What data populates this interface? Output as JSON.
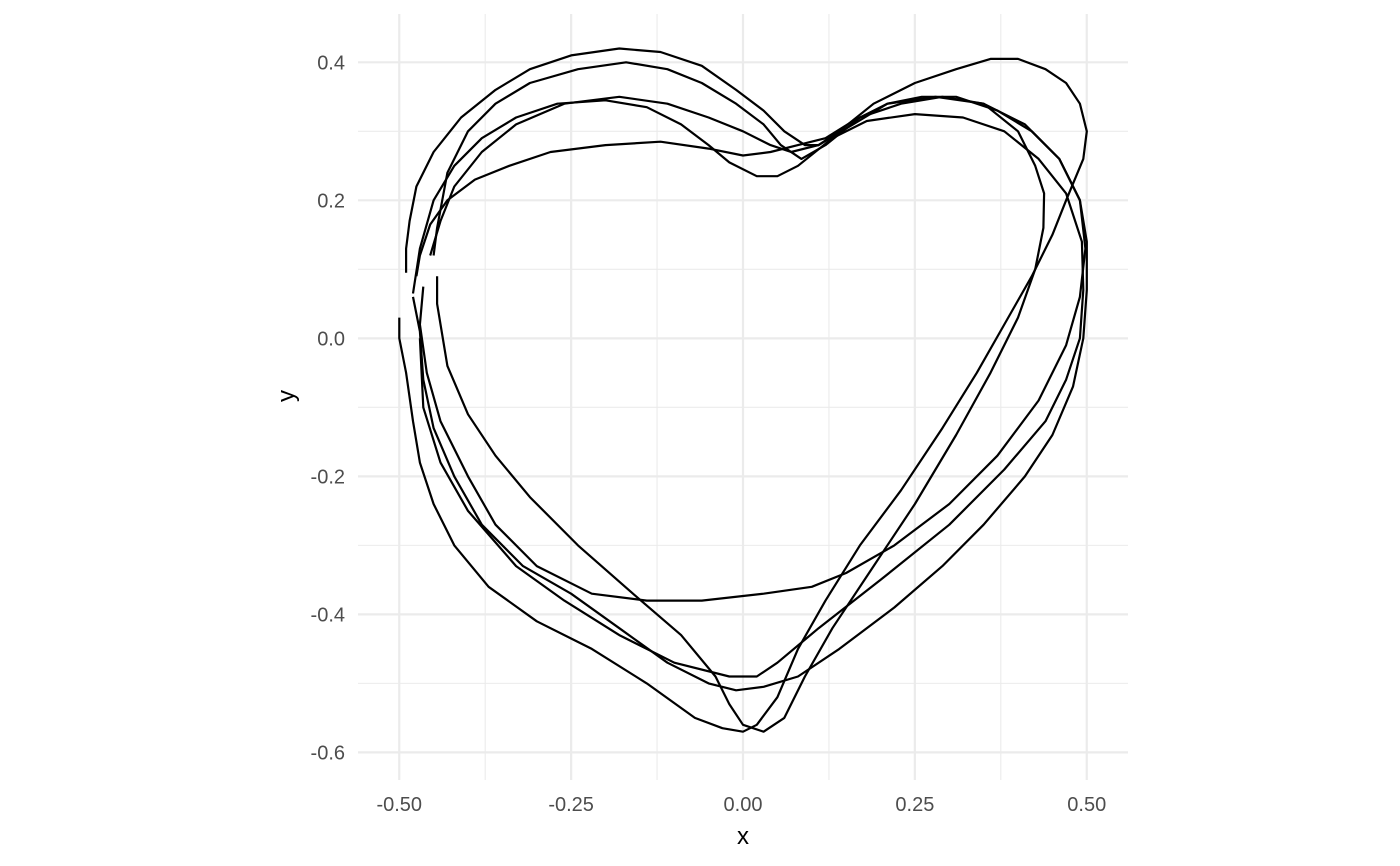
{
  "chart_data": {
    "type": "line",
    "title": "",
    "xlabel": "x",
    "ylabel": "y",
    "xlim": [
      -0.56,
      0.56
    ],
    "ylim": [
      -0.64,
      0.47
    ],
    "x_ticks": [
      -0.5,
      -0.25,
      0,
      0.25,
      0.5
    ],
    "x_tick_labels": [
      "-0.50",
      "-0.25",
      "0.00",
      "0.25",
      "0.50"
    ],
    "y_ticks": [
      -0.6,
      -0.4,
      -0.2,
      0,
      0.2,
      0.4
    ],
    "y_tick_labels": [
      "-0.6",
      "-0.4",
      "-0.2",
      "0.0",
      "0.2",
      "0.4"
    ],
    "grid": true,
    "theme": "minimal",
    "line_color": "#000000",
    "grid_color": "#ebebeb",
    "series": [
      {
        "points": [
          [
            -0.47,
            0.0
          ],
          [
            -0.465,
            -0.1
          ],
          [
            -0.44,
            -0.18
          ],
          [
            -0.4,
            -0.25
          ],
          [
            -0.33,
            -0.33
          ],
          [
            -0.26,
            -0.38
          ],
          [
            -0.18,
            -0.43
          ],
          [
            -0.1,
            -0.47
          ],
          [
            -0.02,
            -0.49
          ],
          [
            0.02,
            -0.49
          ],
          [
            0.05,
            -0.47
          ],
          [
            0.11,
            -0.42
          ],
          [
            0.2,
            -0.35
          ],
          [
            0.3,
            -0.27
          ],
          [
            0.38,
            -0.19
          ],
          [
            0.44,
            -0.12
          ],
          [
            0.47,
            -0.06
          ],
          [
            0.49,
            0.0
          ],
          [
            0.495,
            0.07
          ],
          [
            0.493,
            0.14
          ],
          [
            0.47,
            0.21
          ],
          [
            0.43,
            0.26
          ],
          [
            0.38,
            0.3
          ],
          [
            0.32,
            0.32
          ],
          [
            0.25,
            0.325
          ],
          [
            0.18,
            0.315
          ],
          [
            0.13,
            0.29
          ],
          [
            0.08,
            0.25
          ],
          [
            0.05,
            0.235
          ],
          [
            0.02,
            0.235
          ],
          [
            -0.02,
            0.255
          ],
          [
            -0.05,
            0.28
          ],
          [
            -0.09,
            0.31
          ],
          [
            -0.14,
            0.335
          ],
          [
            -0.2,
            0.345
          ],
          [
            -0.27,
            0.34
          ],
          [
            -0.33,
            0.32
          ],
          [
            -0.38,
            0.29
          ],
          [
            -0.42,
            0.25
          ],
          [
            -0.45,
            0.2
          ],
          [
            -0.47,
            0.13
          ],
          [
            -0.48,
            0.065
          ]
        ]
      },
      {
        "points": [
          [
            -0.445,
            0.09
          ],
          [
            -0.445,
            0.05
          ],
          [
            -0.43,
            -0.04
          ],
          [
            -0.4,
            -0.11
          ],
          [
            -0.36,
            -0.17
          ],
          [
            -0.31,
            -0.23
          ],
          [
            -0.24,
            -0.3
          ],
          [
            -0.16,
            -0.37
          ],
          [
            -0.09,
            -0.43
          ],
          [
            -0.04,
            -0.49
          ],
          [
            -0.02,
            -0.53
          ],
          [
            0.0,
            -0.56
          ],
          [
            0.03,
            -0.57
          ],
          [
            0.06,
            -0.55
          ],
          [
            0.09,
            -0.49
          ],
          [
            0.13,
            -0.42
          ],
          [
            0.19,
            -0.33
          ],
          [
            0.25,
            -0.24
          ],
          [
            0.31,
            -0.14
          ],
          [
            0.36,
            -0.05
          ],
          [
            0.4,
            0.03
          ],
          [
            0.425,
            0.1
          ],
          [
            0.437,
            0.16
          ],
          [
            0.438,
            0.21
          ],
          [
            0.425,
            0.25
          ],
          [
            0.4,
            0.3
          ],
          [
            0.35,
            0.34
          ],
          [
            0.29,
            0.35
          ],
          [
            0.23,
            0.34
          ],
          [
            0.17,
            0.32
          ],
          [
            0.12,
            0.28
          ],
          [
            0.085,
            0.26
          ],
          [
            0.055,
            0.28
          ],
          [
            0.03,
            0.31
          ],
          [
            -0.01,
            0.34
          ],
          [
            -0.06,
            0.37
          ],
          [
            -0.11,
            0.39
          ],
          [
            -0.17,
            0.4
          ],
          [
            -0.24,
            0.39
          ],
          [
            -0.31,
            0.37
          ],
          [
            -0.36,
            0.34
          ],
          [
            -0.4,
            0.3
          ],
          [
            -0.43,
            0.24
          ],
          [
            -0.445,
            0.16
          ],
          [
            -0.45,
            0.12
          ]
        ]
      },
      {
        "points": [
          [
            -0.465,
            0.075
          ],
          [
            -0.47,
            0.02
          ],
          [
            -0.46,
            -0.05
          ],
          [
            -0.44,
            -0.12
          ],
          [
            -0.4,
            -0.2
          ],
          [
            -0.36,
            -0.27
          ],
          [
            -0.3,
            -0.33
          ],
          [
            -0.22,
            -0.37
          ],
          [
            -0.14,
            -0.38
          ],
          [
            -0.06,
            -0.38
          ],
          [
            0.03,
            -0.37
          ],
          [
            0.1,
            -0.36
          ],
          [
            0.15,
            -0.34
          ],
          [
            0.22,
            -0.3
          ],
          [
            0.3,
            -0.24
          ],
          [
            0.37,
            -0.17
          ],
          [
            0.43,
            -0.09
          ],
          [
            0.47,
            -0.01
          ],
          [
            0.49,
            0.06
          ],
          [
            0.498,
            0.13
          ],
          [
            0.49,
            0.2
          ],
          [
            0.46,
            0.26
          ],
          [
            0.41,
            0.31
          ],
          [
            0.35,
            0.34
          ],
          [
            0.28,
            0.35
          ],
          [
            0.21,
            0.34
          ],
          [
            0.16,
            0.31
          ],
          [
            0.11,
            0.28
          ],
          [
            0.07,
            0.27
          ],
          [
            0.04,
            0.28
          ],
          [
            0.0,
            0.3
          ],
          [
            -0.05,
            0.32
          ],
          [
            -0.11,
            0.34
          ],
          [
            -0.18,
            0.35
          ],
          [
            -0.26,
            0.34
          ],
          [
            -0.33,
            0.31
          ],
          [
            -0.38,
            0.27
          ],
          [
            -0.42,
            0.22
          ],
          [
            -0.44,
            0.17
          ],
          [
            -0.455,
            0.12
          ]
        ]
      },
      {
        "points": [
          [
            -0.5,
            0.03
          ],
          [
            -0.5,
            0.0
          ],
          [
            -0.49,
            -0.05
          ],
          [
            -0.48,
            -0.12
          ],
          [
            -0.47,
            -0.18
          ],
          [
            -0.45,
            -0.24
          ],
          [
            -0.42,
            -0.3
          ],
          [
            -0.37,
            -0.36
          ],
          [
            -0.3,
            -0.41
          ],
          [
            -0.22,
            -0.45
          ],
          [
            -0.14,
            -0.5
          ],
          [
            -0.07,
            -0.55
          ],
          [
            -0.03,
            -0.565
          ],
          [
            0.0,
            -0.57
          ],
          [
            0.02,
            -0.56
          ],
          [
            0.05,
            -0.52
          ],
          [
            0.08,
            -0.45
          ],
          [
            0.12,
            -0.38
          ],
          [
            0.17,
            -0.3
          ],
          [
            0.23,
            -0.22
          ],
          [
            0.29,
            -0.13
          ],
          [
            0.34,
            -0.05
          ],
          [
            0.38,
            0.02
          ],
          [
            0.42,
            0.09
          ],
          [
            0.45,
            0.15
          ],
          [
            0.47,
            0.2
          ],
          [
            0.495,
            0.26
          ],
          [
            0.5,
            0.3
          ],
          [
            0.49,
            0.34
          ],
          [
            0.47,
            0.37
          ],
          [
            0.44,
            0.39
          ],
          [
            0.4,
            0.405
          ],
          [
            0.36,
            0.405
          ],
          [
            0.31,
            0.39
          ],
          [
            0.25,
            0.37
          ],
          [
            0.19,
            0.34
          ],
          [
            0.14,
            0.3
          ],
          [
            0.11,
            0.28
          ],
          [
            0.09,
            0.28
          ],
          [
            0.06,
            0.3
          ],
          [
            0.03,
            0.33
          ],
          [
            -0.01,
            0.36
          ],
          [
            -0.06,
            0.395
          ],
          [
            -0.12,
            0.415
          ],
          [
            -0.18,
            0.42
          ],
          [
            -0.25,
            0.41
          ],
          [
            -0.31,
            0.39
          ],
          [
            -0.36,
            0.36
          ],
          [
            -0.41,
            0.32
          ],
          [
            -0.45,
            0.27
          ],
          [
            -0.475,
            0.22
          ],
          [
            -0.485,
            0.17
          ],
          [
            -0.49,
            0.13
          ],
          [
            -0.49,
            0.095
          ]
        ]
      },
      {
        "points": [
          [
            -0.48,
            0.06
          ],
          [
            -0.47,
            0.01
          ],
          [
            -0.465,
            -0.06
          ],
          [
            -0.45,
            -0.13
          ],
          [
            -0.42,
            -0.2
          ],
          [
            -0.38,
            -0.27
          ],
          [
            -0.32,
            -0.33
          ],
          [
            -0.25,
            -0.37
          ],
          [
            -0.18,
            -0.42
          ],
          [
            -0.11,
            -0.47
          ],
          [
            -0.05,
            -0.5
          ],
          [
            -0.01,
            -0.51
          ],
          [
            0.03,
            -0.505
          ],
          [
            0.08,
            -0.49
          ],
          [
            0.14,
            -0.45
          ],
          [
            0.22,
            -0.39
          ],
          [
            0.29,
            -0.33
          ],
          [
            0.35,
            -0.27
          ],
          [
            0.41,
            -0.2
          ],
          [
            0.45,
            -0.14
          ],
          [
            0.48,
            -0.07
          ],
          [
            0.495,
            0.0
          ],
          [
            0.5,
            0.07
          ],
          [
            0.5,
            0.14
          ],
          [
            0.49,
            0.2
          ],
          [
            0.46,
            0.26
          ],
          [
            0.42,
            0.3
          ],
          [
            0.37,
            0.33
          ],
          [
            0.31,
            0.35
          ],
          [
            0.26,
            0.35
          ],
          [
            0.21,
            0.34
          ],
          [
            0.16,
            0.315
          ],
          [
            0.12,
            0.29
          ],
          [
            0.08,
            0.28
          ],
          [
            0.04,
            0.27
          ],
          [
            0.0,
            0.265
          ],
          [
            -0.05,
            0.275
          ],
          [
            -0.12,
            0.285
          ],
          [
            -0.2,
            0.28
          ],
          [
            -0.28,
            0.27
          ],
          [
            -0.34,
            0.25
          ],
          [
            -0.39,
            0.23
          ],
          [
            -0.43,
            0.2
          ],
          [
            -0.455,
            0.165
          ],
          [
            -0.47,
            0.12
          ],
          [
            -0.475,
            0.09
          ]
        ]
      }
    ]
  }
}
